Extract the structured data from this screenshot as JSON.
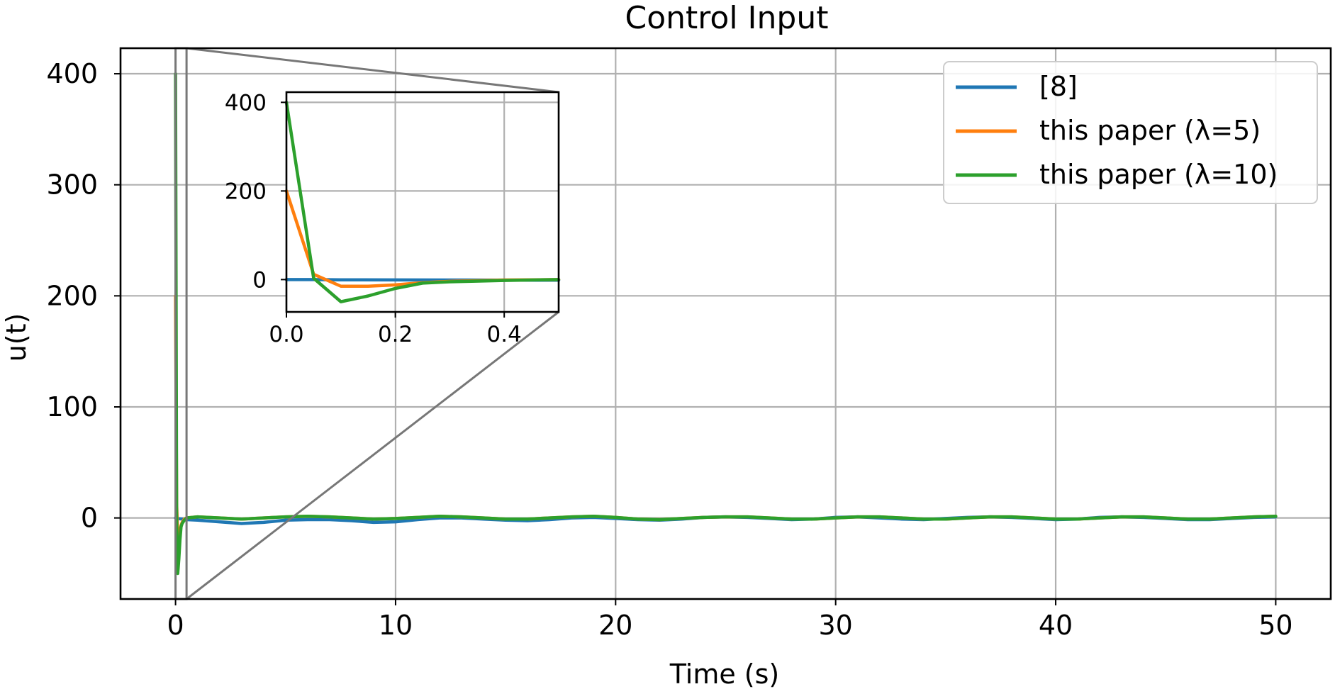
{
  "chart_data": {
    "type": "line",
    "title": "Control Input",
    "xlabel": "Time (s)",
    "ylabel": "u(t)",
    "xlim": [
      -2.5,
      52.5
    ],
    "ylim": [
      -73,
      423
    ],
    "grid": true,
    "legend_position": "top-right",
    "x_ticks": [
      0,
      10,
      20,
      30,
      40,
      50
    ],
    "x_tick_labels": [
      "0",
      "10",
      "20",
      "30",
      "40",
      "50"
    ],
    "y_ticks": [
      0,
      100,
      200,
      300,
      400
    ],
    "y_tick_labels": [
      "0",
      "100",
      "200",
      "300",
      "400"
    ],
    "series": [
      {
        "name": "[8]",
        "color": "#1f77b4",
        "x": [
          0,
          0.05,
          0.1,
          0.3,
          0.5,
          1,
          2,
          3,
          4,
          5,
          6,
          7,
          8,
          9,
          10,
          11,
          12,
          13,
          14,
          15,
          16,
          17,
          18,
          19,
          20,
          21,
          22,
          23,
          24,
          25,
          26,
          27,
          28,
          29,
          30,
          31,
          32,
          33,
          34,
          35,
          36,
          37,
          38,
          39,
          40,
          41,
          42,
          43,
          44,
          45,
          46,
          47,
          48,
          49,
          50
        ],
        "y": [
          0,
          0,
          -0.5,
          -1,
          -1.5,
          -2,
          -3.5,
          -5,
          -4,
          -2,
          -1.5,
          -1.5,
          -2.5,
          -4,
          -3.5,
          -1.5,
          0,
          0,
          -1,
          -2,
          -2.5,
          -1.5,
          0,
          0.5,
          -0.5,
          -1.5,
          -2,
          -1,
          0.5,
          1,
          0.5,
          -0.5,
          -1.5,
          -1,
          0.5,
          1,
          0,
          -1,
          -1.5,
          -0.5,
          0.5,
          1,
          0.5,
          -0.5,
          -1.5,
          -1,
          0.5,
          1,
          0.5,
          -0.5,
          -1.5,
          -1.5,
          -0.5,
          0.5,
          1
        ]
      },
      {
        "name": "this paper (λ=5)",
        "color": "#ff7f0e",
        "x": [
          0,
          0.05,
          0.1,
          0.15,
          0.2,
          0.25,
          0.3,
          0.4,
          0.5,
          1,
          2,
          3,
          4,
          5,
          6,
          7,
          8,
          9,
          10,
          11,
          12,
          13,
          14,
          15,
          16,
          17,
          18,
          19,
          20,
          21,
          22,
          23,
          24,
          25,
          26,
          27,
          28,
          29,
          30,
          31,
          32,
          33,
          34,
          35,
          36,
          37,
          38,
          39,
          40,
          41,
          42,
          43,
          44,
          45,
          46,
          47,
          48,
          49,
          50
        ],
        "y": [
          200,
          12,
          -15,
          -15,
          -12,
          -7,
          -4,
          -1,
          0,
          1,
          0,
          -1,
          0,
          1,
          1.5,
          1,
          0,
          -1,
          -0.5,
          0.5,
          1.5,
          1,
          0,
          -1,
          -1,
          0,
          1,
          1.5,
          0.5,
          -1,
          -1.5,
          -0.5,
          0.5,
          1,
          1,
          0,
          -1,
          -1,
          0,
          1,
          1,
          0,
          -1,
          -1,
          0,
          1,
          1,
          0,
          -1,
          -1,
          0,
          1,
          1,
          0,
          -1,
          -1,
          0,
          1,
          1.5
        ]
      },
      {
        "name": "this paper (λ=10)",
        "color": "#2ca02c",
        "x": [
          0,
          0.05,
          0.1,
          0.15,
          0.2,
          0.25,
          0.3,
          0.4,
          0.5,
          1,
          2,
          3,
          4,
          5,
          6,
          7,
          8,
          9,
          10,
          11,
          12,
          13,
          14,
          15,
          16,
          17,
          18,
          19,
          20,
          21,
          22,
          23,
          24,
          25,
          26,
          27,
          28,
          29,
          30,
          31,
          32,
          33,
          34,
          35,
          36,
          37,
          38,
          39,
          40,
          41,
          42,
          43,
          44,
          45,
          46,
          47,
          48,
          49,
          50
        ],
        "y": [
          400,
          3,
          -50,
          -37,
          -20,
          -8,
          -5,
          -2,
          0,
          1,
          0,
          -1,
          0,
          1,
          1.5,
          1,
          0,
          -1,
          -0.5,
          0.5,
          1.5,
          1,
          0,
          -1,
          -1,
          0,
          1,
          1.5,
          0.5,
          -1,
          -1.5,
          -0.5,
          0.5,
          1,
          1,
          0,
          -1,
          -1,
          0,
          1,
          1,
          0,
          -1,
          -1,
          0,
          1,
          1,
          0,
          -1,
          -1,
          0,
          1,
          1,
          0,
          -1,
          -1,
          0,
          1,
          1.5
        ]
      }
    ],
    "inset": {
      "xlim": [
        0,
        0.5
      ],
      "ylim": [
        -73,
        423
      ],
      "x_ticks": [
        0,
        0.2,
        0.4
      ],
      "x_tick_labels": [
        "0.0",
        "0.2",
        "0.4"
      ],
      "y_ticks": [
        0,
        200,
        400
      ],
      "y_tick_labels": [
        "0",
        "200",
        "400"
      ],
      "grid": true
    },
    "zoom_region": {
      "x": [
        0,
        0.5
      ],
      "y": [
        -73,
        423
      ]
    }
  }
}
